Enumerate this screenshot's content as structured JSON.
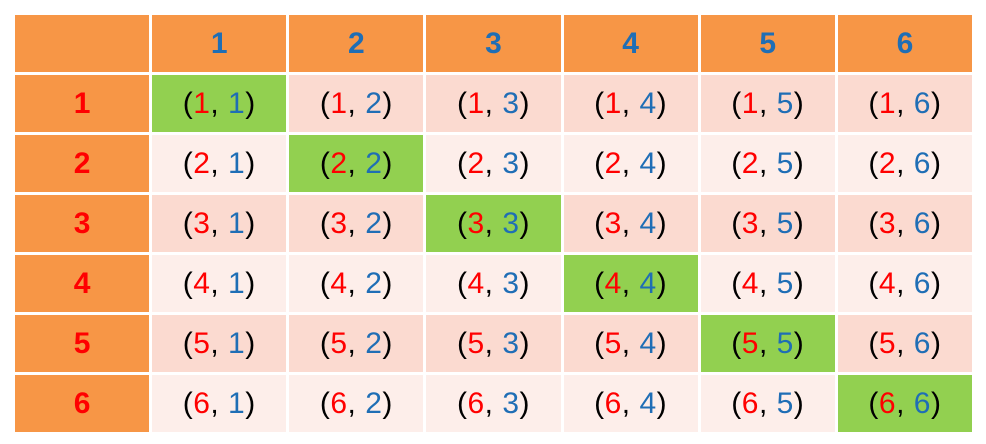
{
  "colors": {
    "header_bg": "#f79646",
    "row_odd_bg": "#fbdad0",
    "row_even_bg": "#fdeeea",
    "diagonal_bg": "#92d050",
    "first_number": "#ff0000",
    "second_number": "#1f6eb5"
  },
  "corner": "",
  "column_headers": [
    "1",
    "2",
    "3",
    "4",
    "5",
    "6"
  ],
  "rows": [
    {
      "header": "1",
      "cells": [
        {
          "a": "1",
          "b": "1"
        },
        {
          "a": "1",
          "b": "2"
        },
        {
          "a": "1",
          "b": "3"
        },
        {
          "a": "1",
          "b": "4"
        },
        {
          "a": "1",
          "b": "5"
        },
        {
          "a": "1",
          "b": "6"
        }
      ]
    },
    {
      "header": "2",
      "cells": [
        {
          "a": "2",
          "b": "1"
        },
        {
          "a": "2",
          "b": "2"
        },
        {
          "a": "2",
          "b": "3"
        },
        {
          "a": "2",
          "b": "4"
        },
        {
          "a": "2",
          "b": "5"
        },
        {
          "a": "2",
          "b": "6"
        }
      ]
    },
    {
      "header": "3",
      "cells": [
        {
          "a": "3",
          "b": "1"
        },
        {
          "a": "3",
          "b": "2"
        },
        {
          "a": "3",
          "b": "3"
        },
        {
          "a": "3",
          "b": "4"
        },
        {
          "a": "3",
          "b": "5"
        },
        {
          "a": "3",
          "b": "6"
        }
      ]
    },
    {
      "header": "4",
      "cells": [
        {
          "a": "4",
          "b": "1"
        },
        {
          "a": "4",
          "b": "2"
        },
        {
          "a": "4",
          "b": "3"
        },
        {
          "a": "4",
          "b": "4"
        },
        {
          "a": "4",
          "b": "5"
        },
        {
          "a": "4",
          "b": "6"
        }
      ]
    },
    {
      "header": "5",
      "cells": [
        {
          "a": "5",
          "b": "1"
        },
        {
          "a": "5",
          "b": "2"
        },
        {
          "a": "5",
          "b": "3"
        },
        {
          "a": "5",
          "b": "4"
        },
        {
          "a": "5",
          "b": "5"
        },
        {
          "a": "5",
          "b": "6"
        }
      ]
    },
    {
      "header": "6",
      "cells": [
        {
          "a": "6",
          "b": "1"
        },
        {
          "a": "6",
          "b": "2"
        },
        {
          "a": "6",
          "b": "3"
        },
        {
          "a": "6",
          "b": "4"
        },
        {
          "a": "6",
          "b": "5"
        },
        {
          "a": "6",
          "b": "6"
        }
      ]
    }
  ]
}
